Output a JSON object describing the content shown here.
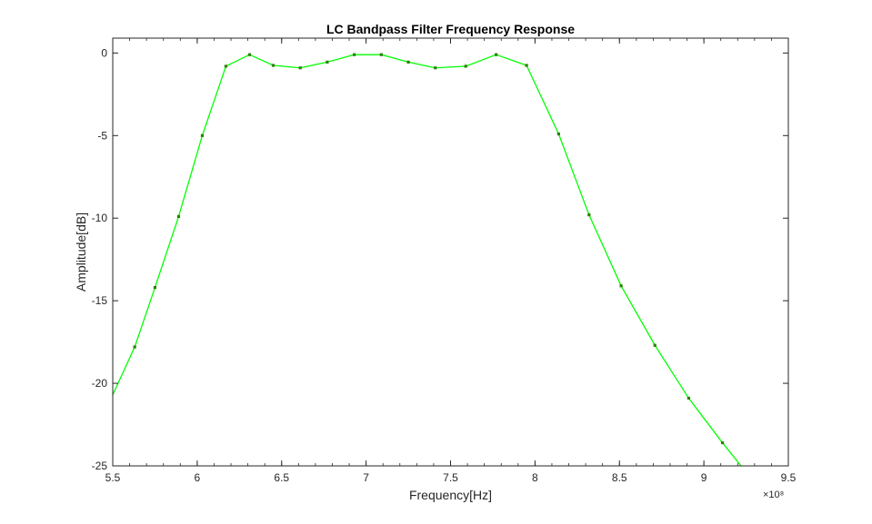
{
  "chart_data": {
    "type": "line",
    "title": "LC Bandpass Filter Frequency Response",
    "xlabel": "Frequency[Hz]",
    "ylabel": "Amplitude[dB]",
    "x_exponent_label": "×10⁸",
    "x_scale_exponent": 8,
    "xlim": [
      5.5,
      9.5
    ],
    "ylim": [
      -25,
      0.9
    ],
    "x_ticks": [
      5.5,
      6,
      6.5,
      7,
      7.5,
      8,
      8.5,
      9,
      9.5
    ],
    "x_tick_labels": [
      "5.5",
      "6",
      "6.5",
      "7",
      "7.5",
      "8",
      "8.5",
      "9",
      "9.5"
    ],
    "y_ticks": [
      0,
      -5,
      -10,
      -15,
      -20,
      -25
    ],
    "y_tick_labels": [
      "0",
      "-5",
      "-10",
      "-15",
      "-20",
      "-25"
    ],
    "grid": false,
    "line_color": "#00ff00",
    "marker_color": "#2e7d00",
    "series": [
      {
        "x": [
          5.5,
          5.63,
          5.75,
          5.89,
          6.03,
          6.17,
          6.31,
          6.45,
          6.61,
          6.77,
          6.93,
          7.09,
          7.25,
          7.41,
          7.59,
          7.77,
          7.95,
          8.14,
          8.32,
          8.51,
          8.71,
          8.91,
          9.11,
          9.22
        ],
        "y": [
          -20.7,
          -17.8,
          -14.2,
          -9.9,
          -5.0,
          -0.8,
          -0.1,
          -0.75,
          -0.9,
          -0.55,
          -0.1,
          -0.1,
          -0.55,
          -0.9,
          -0.8,
          -0.1,
          -0.75,
          -4.9,
          -9.8,
          -14.1,
          -17.7,
          -20.9,
          -23.6,
          -25.0
        ],
        "markers": [
          false,
          true,
          true,
          true,
          true,
          true,
          true,
          true,
          true,
          true,
          true,
          true,
          true,
          true,
          true,
          true,
          true,
          true,
          true,
          true,
          true,
          true,
          true,
          false
        ]
      }
    ]
  }
}
